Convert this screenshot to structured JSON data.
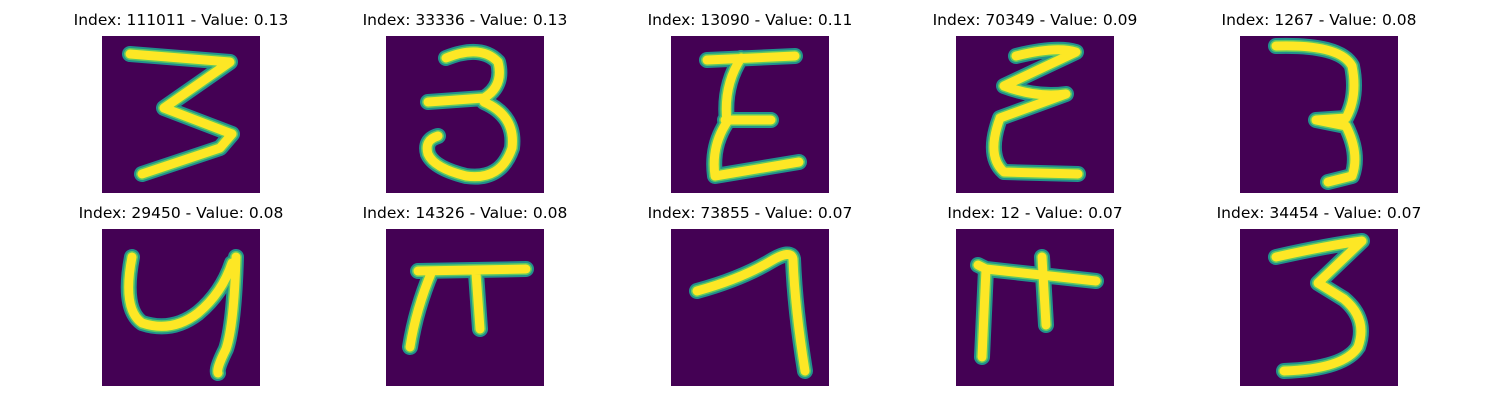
{
  "colors": {
    "background": "#440154",
    "stroke_core": "#fde725",
    "stroke_edge": "#21918c",
    "stroke_mid": "#5ec962"
  },
  "panels": [
    {
      "title": "Index: 111011 - Value: 0.13",
      "glyph": "3-flat-top"
    },
    {
      "title": "Index: 33336 - Value: 0.13",
      "glyph": "3-curly"
    },
    {
      "title": "Index: 13090 - Value: 0.11",
      "glyph": "E-shaped"
    },
    {
      "title": "Index: 70349 - Value: 0.09",
      "glyph": "E-squiggle"
    },
    {
      "title": "Index: 1267 - Value: 0.08",
      "glyph": "3-thin"
    },
    {
      "title": "Index: 29450 - Value: 0.08",
      "glyph": "4-curved"
    },
    {
      "title": "Index: 14326 - Value: 0.08",
      "glyph": "pi-shaped"
    },
    {
      "title": "Index: 73855 - Value: 0.07",
      "glyph": "1-hooked"
    },
    {
      "title": "Index: 12 - Value: 0.07",
      "glyph": "F-shaped"
    },
    {
      "title": "Index: 34454 - Value: 0.07",
      "glyph": "3-slanted"
    }
  ]
}
